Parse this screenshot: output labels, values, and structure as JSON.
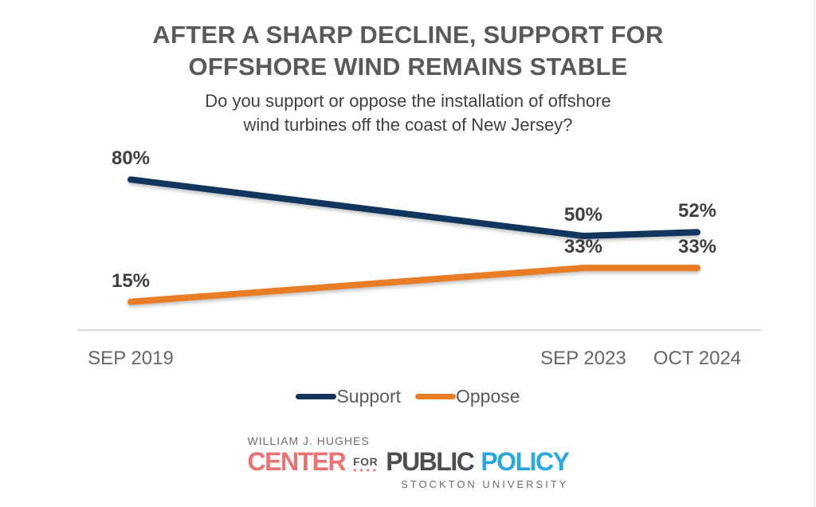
{
  "header": {
    "title_lines": [
      "AFTER A SHARP DECLINE, SUPPORT FOR",
      "OFFSHORE WIND REMAINS STABLE"
    ],
    "subtitle_lines": [
      "Do you support or oppose the installation of offshore",
      "wind turbines off the coast of New Jersey?"
    ]
  },
  "chart_data": {
    "type": "line",
    "title": "AFTER A SHARP DECLINE, SUPPORT FOR OFFSHORE WIND REMAINS STABLE",
    "subtitle": "Do you support or oppose the installation of offshore wind turbines off the coast of New Jersey?",
    "categories": [
      "SEP 2019",
      "SEP 2023",
      "OCT 2024"
    ],
    "series": [
      {
        "name": "Support",
        "values": [
          80,
          50,
          52
        ],
        "color": "#12355e"
      },
      {
        "name": "Oppose",
        "values": [
          15,
          33,
          33
        ],
        "color": "#e87d25"
      }
    ],
    "value_suffix": "%",
    "ylim": [
      0,
      95
    ],
    "grid": false,
    "legend_position": "bottom",
    "data_labels": true,
    "colors": {
      "support_navy": "#12355e",
      "oppose_orange": "#e87d25",
      "axis_line": "#d9d9d9",
      "label_text": "#3f3f3f",
      "tick_text": "#666666"
    }
  },
  "branding": {
    "eyebrow": "WILLIAM J. HUGHES",
    "center": "CENTER",
    "for_word": "FOR",
    "stars": "★★★★",
    "public": "PUBLIC",
    "policy": "POLICY",
    "university": "STOCKTON UNIVERSITY",
    "colors": {
      "salmon": "#e97373",
      "light_blue": "#29a8e0",
      "gray": "#6e6e6e",
      "dark_gray": "#4d4d4d"
    }
  }
}
